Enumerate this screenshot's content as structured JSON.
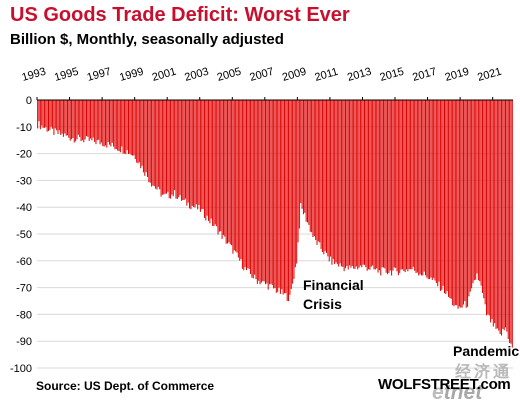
{
  "title": "US Goods Trade Deficit: Worst Ever",
  "subtitle": "Billion $, Monthly, seasonally adjusted",
  "source": "Source: US Dept. of Commerce",
  "brand": "WOLFSTREET.com",
  "annotations": {
    "financial_crisis": [
      "Financial",
      "Crisis"
    ],
    "pandemic": "Pandemic"
  },
  "watermark": {
    "chinese": "经济通",
    "logo_e": "e",
    "logo_rest": "tnet"
  },
  "colors": {
    "title": "#c8102e",
    "bars": "#e00000",
    "grid": "#d9d9d9",
    "axis": "#000000"
  },
  "chart_data": {
    "type": "bar",
    "orientation": "negative-from-zero",
    "x_start": "1993-01",
    "x_end": "2022-03",
    "frequency": "monthly",
    "x_ticks": [
      "1993",
      "1995",
      "1997",
      "1999",
      "2001",
      "2003",
      "2005",
      "2007",
      "2009",
      "2011",
      "2013",
      "2015",
      "2017",
      "2019",
      "2021"
    ],
    "ylim": [
      -100,
      0
    ],
    "y_ticks": [
      0,
      -10,
      -20,
      -30,
      -40,
      -50,
      -60,
      -70,
      -80,
      -90,
      -100
    ],
    "grid": true,
    "series": [
      {
        "anchors": [
          [
            "1993-01",
            -9
          ],
          [
            "1994-01",
            -12
          ],
          [
            "1995-01",
            -14
          ],
          [
            "1996-01",
            -15
          ],
          [
            "1997-01",
            -16
          ],
          [
            "1998-01",
            -18
          ],
          [
            "1998-07",
            -19
          ],
          [
            "1999-01",
            -21
          ],
          [
            "2000-01",
            -31
          ],
          [
            "2000-10",
            -36
          ],
          [
            "2001-06",
            -35
          ],
          [
            "2002-01",
            -38
          ],
          [
            "2003-01",
            -41
          ],
          [
            "2004-01",
            -48
          ],
          [
            "2005-01",
            -56
          ],
          [
            "2005-10",
            -63
          ],
          [
            "2006-06",
            -67
          ],
          [
            "2007-06",
            -70
          ],
          [
            "2008-07",
            -74
          ],
          [
            "2008-12",
            -60
          ],
          [
            "2009-03",
            -40
          ],
          [
            "2009-06",
            -43
          ],
          [
            "2010-01",
            -52
          ],
          [
            "2011-01",
            -60
          ],
          [
            "2012-01",
            -63
          ],
          [
            "2013-01",
            -62
          ],
          [
            "2014-01",
            -64
          ],
          [
            "2015-01",
            -64
          ],
          [
            "2016-01",
            -63
          ],
          [
            "2017-01",
            -66
          ],
          [
            "2018-01",
            -71
          ],
          [
            "2018-10",
            -78
          ],
          [
            "2019-06",
            -76
          ],
          [
            "2020-01",
            -65
          ],
          [
            "2020-04",
            -70
          ],
          [
            "2020-08",
            -80
          ],
          [
            "2021-01",
            -84
          ],
          [
            "2021-06",
            -88
          ],
          [
            "2021-10",
            -85
          ],
          [
            "2022-03",
            -93
          ]
        ]
      }
    ]
  }
}
